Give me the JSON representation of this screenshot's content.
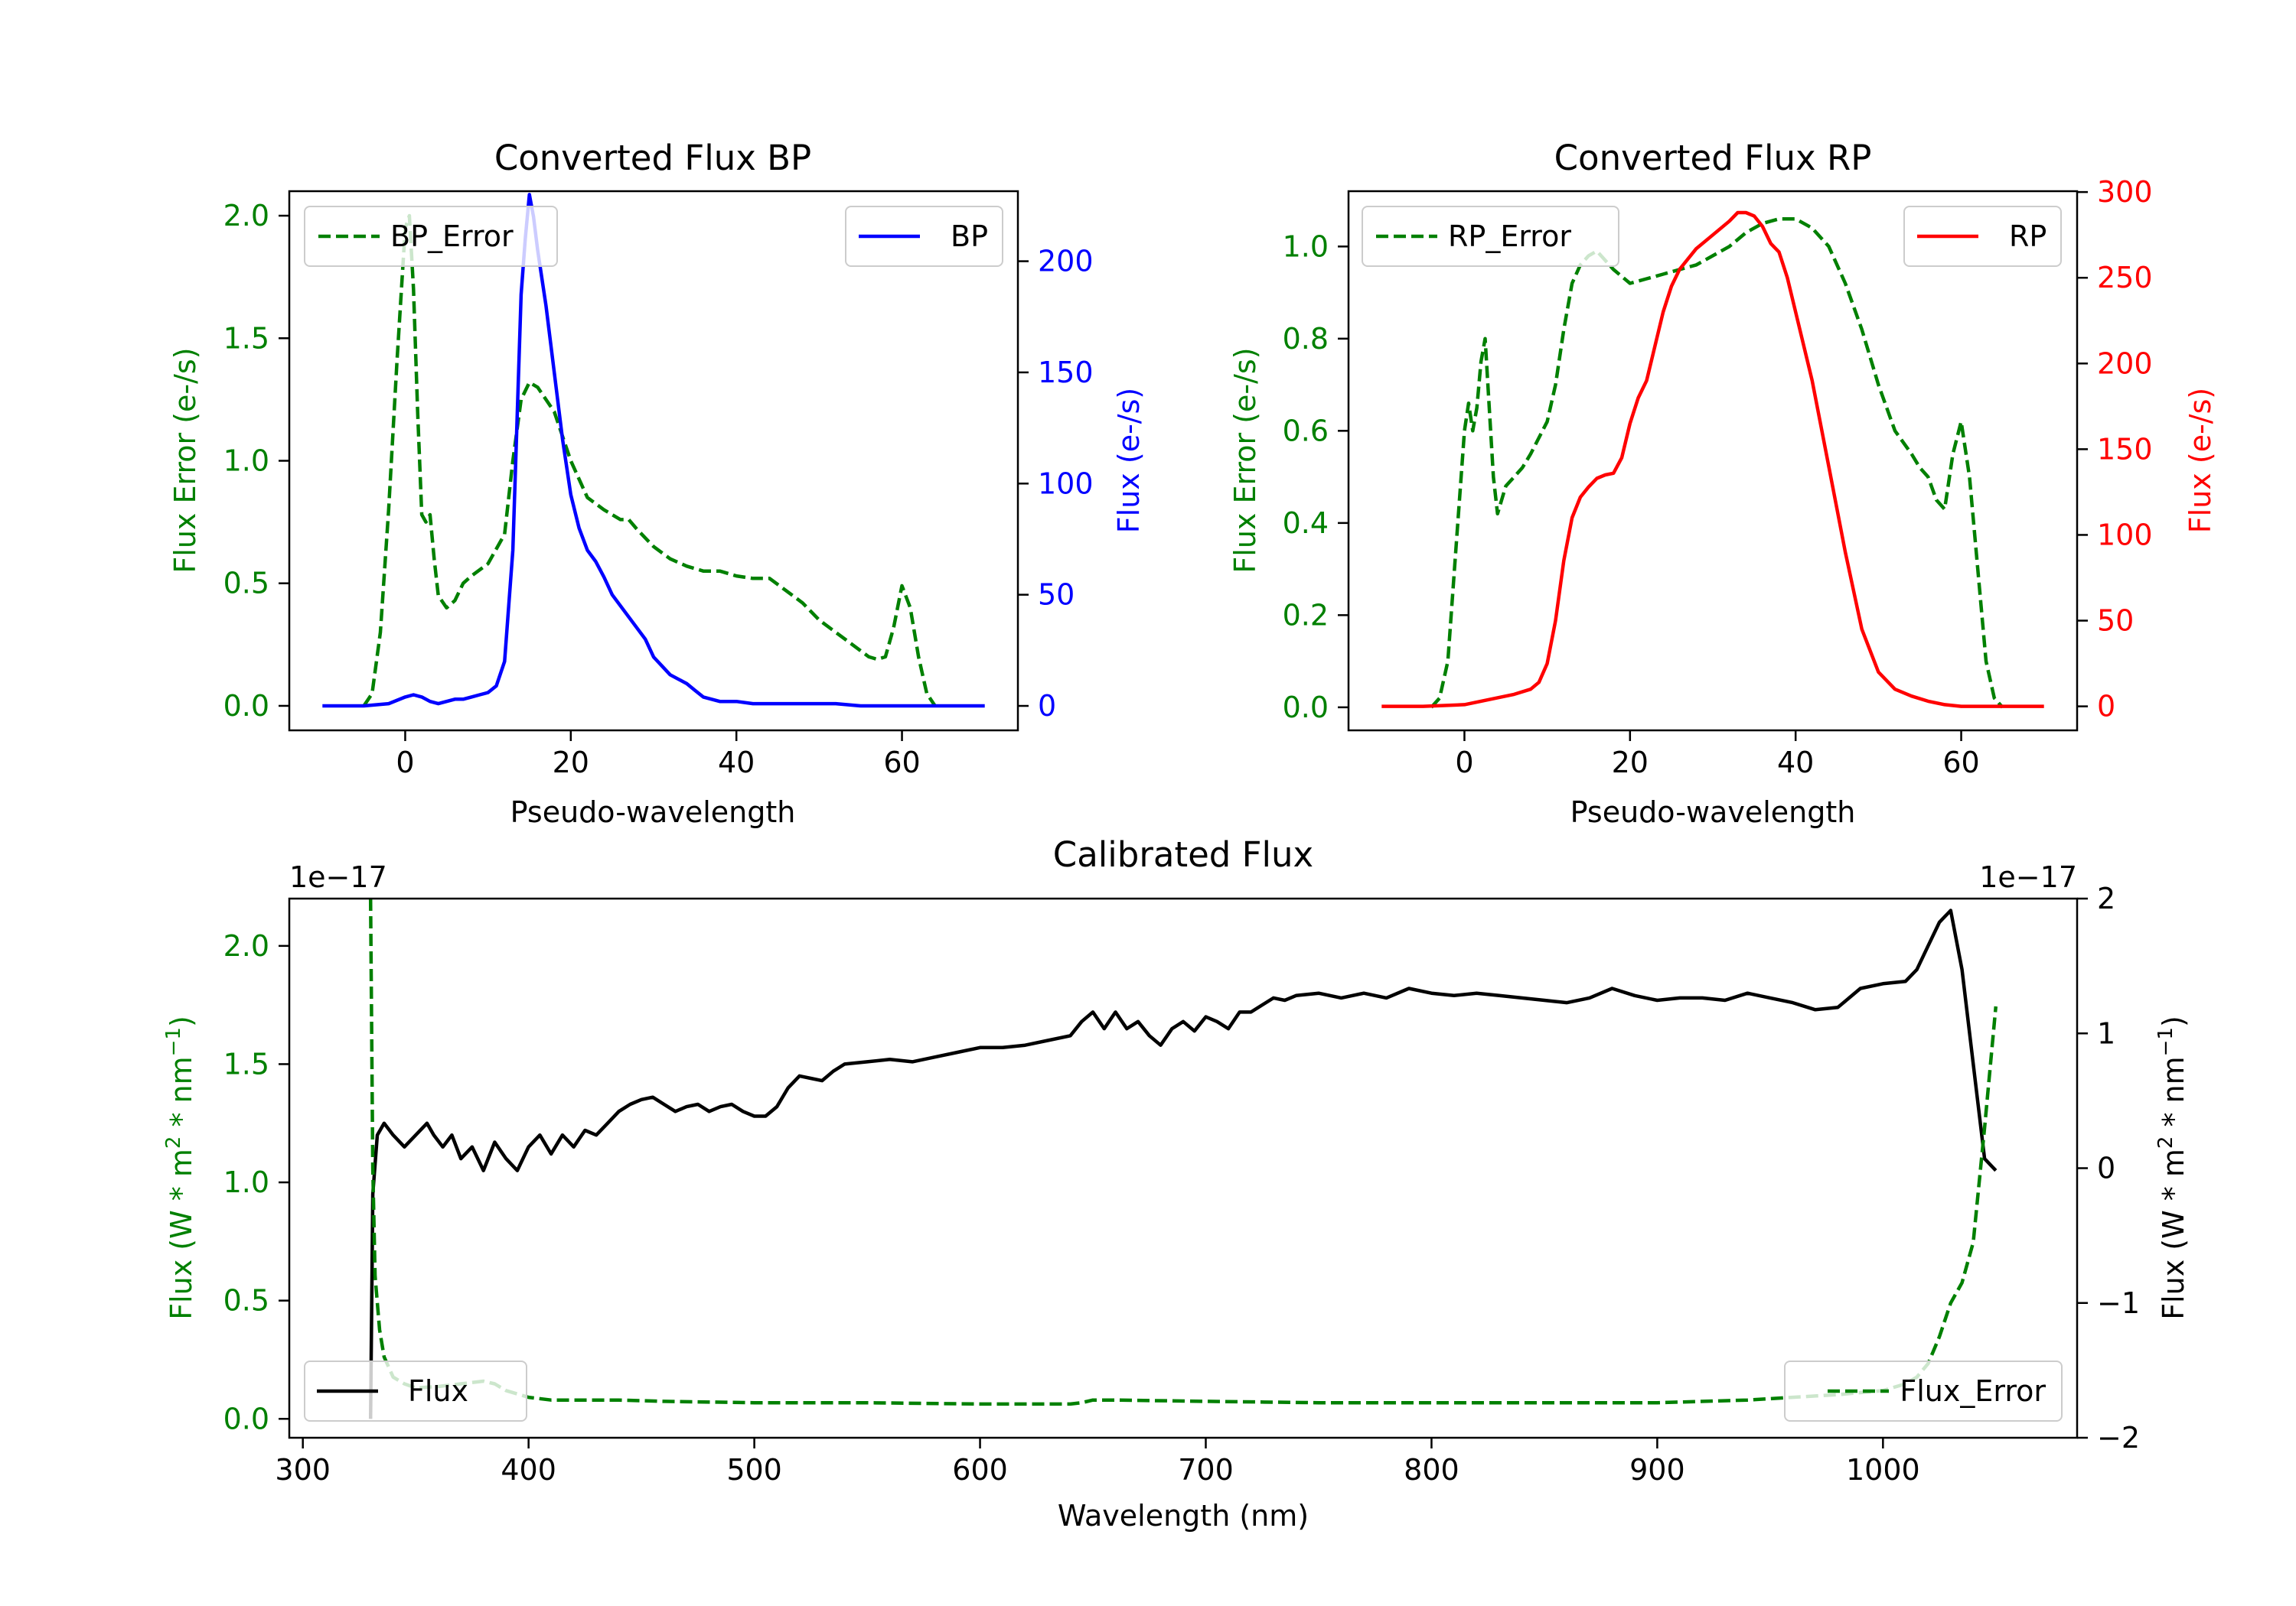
{
  "figure": {
    "colors": {
      "error": "#008000",
      "bp": "#0000ff",
      "rp": "#ff0000",
      "flux": "#000000",
      "axis": "#000000",
      "background": "#ffffff"
    }
  },
  "chart_data": [
    {
      "id": "bp",
      "type": "line",
      "title": "Converted Flux BP",
      "xlabel": "Pseudo-wavelength",
      "ylabel_left": "Flux Error (e-/s)",
      "ylabel_right": "Flux (e-/s)",
      "xlim": [
        -14,
        74
      ],
      "ylim_left": [
        -0.1,
        2.1
      ],
      "ylim_right": [
        -11.0,
        231.5
      ],
      "xticks": [
        0,
        20,
        40,
        60
      ],
      "yticks_left": [
        0.0,
        0.5,
        1.0,
        1.5,
        2.0
      ],
      "yticks_right": [
        0,
        50,
        100,
        150,
        200
      ],
      "xtick_labels": [
        "0",
        "20",
        "40",
        "60"
      ],
      "ytick_labels_left": [
        "0.0",
        "0.5",
        "1.0",
        "1.5",
        "2.0"
      ],
      "ytick_labels_right": [
        "0",
        "50",
        "100",
        "150",
        "200"
      ],
      "left_color": "#008000",
      "right_color": "#0000ff",
      "legend_left": "BP_Error",
      "legend_right": "BP",
      "series": [
        {
          "name": "BP_Error",
          "axis": "left",
          "style": "dashed",
          "color": "#008000",
          "x": [
            -5,
            -4,
            -3,
            -2,
            -1,
            0,
            0.5,
            1,
            1.5,
            2,
            2.5,
            3,
            3.5,
            4,
            5,
            6,
            7,
            8,
            10,
            12,
            13,
            14,
            15,
            16,
            18,
            20,
            22,
            24,
            26,
            27,
            28,
            30,
            32,
            34,
            36,
            38,
            40,
            42,
            44,
            46,
            48,
            50,
            52,
            54,
            56,
            57,
            58,
            59,
            60,
            61,
            62,
            63,
            64
          ],
          "values": [
            0.0,
            0.05,
            0.3,
            0.8,
            1.4,
            1.95,
            2.0,
            1.7,
            1.2,
            0.78,
            0.75,
            0.78,
            0.6,
            0.45,
            0.4,
            0.43,
            0.5,
            0.53,
            0.58,
            0.7,
            1.0,
            1.25,
            1.32,
            1.3,
            1.2,
            1.0,
            0.85,
            0.8,
            0.76,
            0.76,
            0.72,
            0.65,
            0.6,
            0.57,
            0.55,
            0.55,
            0.53,
            0.52,
            0.52,
            0.47,
            0.42,
            0.35,
            0.3,
            0.25,
            0.2,
            0.19,
            0.2,
            0.32,
            0.49,
            0.4,
            0.2,
            0.05,
            0.0
          ]
        },
        {
          "name": "BP",
          "axis": "right",
          "style": "solid",
          "color": "#0000ff",
          "x": [
            -10,
            -5,
            -2,
            0,
            1,
            2,
            3,
            4,
            5,
            6,
            7,
            8,
            9,
            10,
            11,
            12,
            13,
            14,
            14.5,
            15,
            15.5,
            16,
            17,
            18,
            19,
            20,
            21,
            22,
            23,
            24,
            25,
            26,
            27,
            28,
            29,
            30,
            31,
            32,
            34,
            35,
            36,
            38,
            40,
            42,
            45,
            48,
            50,
            52,
            55,
            60,
            65,
            70
          ],
          "values": [
            0,
            0,
            1,
            4,
            5,
            4,
            2,
            1,
            2,
            3,
            3,
            4,
            5,
            6,
            9,
            20,
            70,
            185,
            210,
            230,
            220,
            205,
            180,
            150,
            120,
            95,
            80,
            70,
            65,
            58,
            50,
            45,
            40,
            35,
            30,
            22,
            18,
            14,
            10,
            7,
            4,
            2,
            2,
            1,
            1,
            1,
            1,
            1,
            0,
            0,
            0,
            0
          ]
        }
      ]
    },
    {
      "id": "rp",
      "type": "line",
      "title": "Converted Flux RP",
      "xlabel": "Pseudo-wavelength",
      "ylabel_left": "Flux Error (e-/s)",
      "ylabel_right": "Flux (e-/s)",
      "xlim": [
        -14,
        74
      ],
      "ylim_left": [
        -0.05,
        1.12
      ],
      "ylim_right": [
        -14.0,
        300.5
      ],
      "xticks": [
        0,
        20,
        40,
        60
      ],
      "yticks_left": [
        0.0,
        0.2,
        0.4,
        0.6,
        0.8,
        1.0
      ],
      "yticks_right": [
        0,
        50,
        100,
        150,
        200,
        250,
        300
      ],
      "xtick_labels": [
        "0",
        "20",
        "40",
        "60"
      ],
      "ytick_labels_left": [
        "0.0",
        "0.2",
        "0.4",
        "0.6",
        "0.8",
        "1.0"
      ],
      "ytick_labels_right": [
        "0",
        "50",
        "100",
        "150",
        "200",
        "250",
        "300"
      ],
      "left_color": "#008000",
      "right_color": "#ff0000",
      "legend_left": "RP_Error",
      "legend_right": "RP",
      "series": [
        {
          "name": "RP_Error",
          "axis": "left",
          "style": "dashed",
          "color": "#008000",
          "x": [
            -4,
            -3,
            -2,
            -1,
            0,
            0.5,
            1,
            1.5,
            2,
            2.5,
            3,
            3.5,
            4,
            5,
            6,
            7,
            8,
            10,
            11,
            12,
            13,
            14,
            15,
            16,
            18,
            20,
            22,
            24,
            26,
            28,
            30,
            32,
            34,
            36,
            38,
            40,
            42,
            44,
            46,
            48,
            50,
            52,
            54,
            55,
            56,
            57,
            58,
            59,
            60,
            61,
            62,
            63,
            64,
            65
          ],
          "values": [
            0.0,
            0.02,
            0.1,
            0.35,
            0.6,
            0.66,
            0.6,
            0.65,
            0.75,
            0.8,
            0.65,
            0.5,
            0.42,
            0.48,
            0.5,
            0.52,
            0.55,
            0.62,
            0.7,
            0.82,
            0.92,
            0.96,
            0.98,
            0.99,
            0.95,
            0.92,
            0.93,
            0.94,
            0.95,
            0.96,
            0.98,
            1.0,
            1.03,
            1.05,
            1.06,
            1.06,
            1.04,
            1.0,
            0.92,
            0.82,
            0.7,
            0.6,
            0.55,
            0.52,
            0.5,
            0.45,
            0.43,
            0.55,
            0.62,
            0.5,
            0.3,
            0.1,
            0.02,
            0.0
          ]
        },
        {
          "name": "RP",
          "axis": "right",
          "style": "solid",
          "color": "#ff0000",
          "x": [
            -10,
            -5,
            0,
            2,
            4,
            6,
            8,
            9,
            10,
            11,
            12,
            13,
            14,
            15,
            16,
            17,
            18,
            19,
            20,
            21,
            22,
            23,
            24,
            25,
            26,
            28,
            30,
            32,
            33,
            34,
            35,
            36,
            37,
            38,
            39,
            40,
            42,
            44,
            46,
            48,
            50,
            52,
            54,
            56,
            58,
            60,
            62,
            65,
            70
          ],
          "values": [
            0,
            0,
            1,
            3,
            5,
            7,
            10,
            14,
            25,
            50,
            85,
            110,
            122,
            128,
            133,
            135,
            136,
            145,
            165,
            180,
            190,
            210,
            230,
            245,
            255,
            267,
            275,
            283,
            288,
            288,
            286,
            280,
            270,
            265,
            250,
            230,
            190,
            140,
            90,
            45,
            20,
            10,
            6,
            3,
            1,
            0,
            0,
            0,
            0
          ]
        }
      ]
    },
    {
      "id": "calibrated",
      "type": "line",
      "title": "Calibrated Flux",
      "xlabel": "Wavelength (nm)",
      "ylabel_left": "Flux (W * m$^2$ * nm$^{-1}$)",
      "ylabel_right": "Flux (W * m$^2$ * nm$^{-1}$)",
      "offset_left": "1e−17",
      "offset_right": "1e−17",
      "xlim": [
        294,
        1086
      ],
      "ylim_left": [
        -0.08,
        2.2
      ],
      "ylim_right": [
        -2.0,
        2.0
      ],
      "xticks": [
        300,
        400,
        500,
        600,
        700,
        800,
        900,
        1000
      ],
      "yticks_left": [
        0.0,
        0.5,
        1.0,
        1.5,
        2.0
      ],
      "yticks_right": [
        -2,
        -1,
        0,
        1,
        2
      ],
      "xtick_labels": [
        "300",
        "400",
        "500",
        "600",
        "700",
        "800",
        "900",
        "1000"
      ],
      "ytick_labels_left": [
        "0.0",
        "0.5",
        "1.0",
        "1.5",
        "2.0"
      ],
      "ytick_labels_right": [
        "−2",
        "−1",
        "0",
        "1",
        "2"
      ],
      "left_color": "#008000",
      "right_color": "#000000",
      "legend_left": "Flux",
      "legend_right": "Flux_Error",
      "series": [
        {
          "name": "Flux",
          "axis": "left",
          "style": "solid",
          "color": "#000000",
          "x": [
            330,
            331,
            333,
            336,
            340,
            345,
            350,
            355,
            358,
            362,
            366,
            370,
            375,
            380,
            385,
            390,
            395,
            400,
            405,
            410,
            415,
            420,
            425,
            430,
            435,
            440,
            445,
            450,
            455,
            460,
            465,
            470,
            475,
            480,
            485,
            490,
            495,
            500,
            505,
            510,
            515,
            520,
            525,
            530,
            535,
            540,
            550,
            560,
            570,
            580,
            590,
            600,
            610,
            620,
            630,
            640,
            645,
            650,
            655,
            660,
            665,
            670,
            675,
            680,
            685,
            690,
            695,
            700,
            705,
            710,
            715,
            720,
            725,
            730,
            735,
            740,
            750,
            760,
            770,
            780,
            790,
            800,
            810,
            820,
            830,
            840,
            850,
            860,
            870,
            880,
            890,
            900,
            910,
            920,
            930,
            940,
            950,
            960,
            970,
            980,
            985,
            990,
            1000,
            1010,
            1015,
            1020,
            1025,
            1030,
            1035,
            1040,
            1045,
            1050
          ],
          "values": [
            0.0,
            0.95,
            1.2,
            1.25,
            1.2,
            1.15,
            1.2,
            1.25,
            1.2,
            1.15,
            1.2,
            1.1,
            1.15,
            1.05,
            1.17,
            1.1,
            1.05,
            1.15,
            1.2,
            1.12,
            1.2,
            1.15,
            1.22,
            1.2,
            1.25,
            1.3,
            1.33,
            1.35,
            1.36,
            1.33,
            1.3,
            1.32,
            1.33,
            1.3,
            1.32,
            1.33,
            1.3,
            1.28,
            1.28,
            1.32,
            1.4,
            1.45,
            1.44,
            1.43,
            1.47,
            1.5,
            1.51,
            1.52,
            1.51,
            1.53,
            1.55,
            1.57,
            1.57,
            1.58,
            1.6,
            1.62,
            1.68,
            1.72,
            1.65,
            1.72,
            1.65,
            1.68,
            1.62,
            1.58,
            1.65,
            1.68,
            1.64,
            1.7,
            1.68,
            1.65,
            1.72,
            1.72,
            1.75,
            1.78,
            1.77,
            1.79,
            1.8,
            1.78,
            1.8,
            1.78,
            1.82,
            1.8,
            1.79,
            1.8,
            1.79,
            1.78,
            1.77,
            1.76,
            1.78,
            1.82,
            1.79,
            1.77,
            1.78,
            1.78,
            1.77,
            1.8,
            1.78,
            1.76,
            1.73,
            1.74,
            1.78,
            1.82,
            1.84,
            1.85,
            1.9,
            2.0,
            2.1,
            2.15,
            1.9,
            1.5,
            1.1,
            1.05
          ]
        },
        {
          "name": "Flux_Error",
          "axis": "right",
          "style": "dashed",
          "color": "#008000",
          "x": [
            330,
            331,
            332,
            334,
            336,
            340,
            345,
            350,
            360,
            370,
            380,
            385,
            390,
            400,
            410,
            420,
            440,
            460,
            500,
            550,
            600,
            630,
            640,
            645,
            650,
            660,
            700,
            750,
            800,
            850,
            900,
            940,
            960,
            980,
            1000,
            1010,
            1015,
            1020,
            1025,
            1030,
            1035,
            1040,
            1045,
            1050
          ],
          "values": [
            2.0,
            0.0,
            -0.8,
            -1.2,
            -1.4,
            -1.55,
            -1.6,
            -1.63,
            -1.62,
            -1.6,
            -1.58,
            -1.6,
            -1.65,
            -1.7,
            -1.72,
            -1.72,
            -1.72,
            -1.73,
            -1.74,
            -1.74,
            -1.75,
            -1.75,
            -1.75,
            -1.74,
            -1.72,
            -1.72,
            -1.73,
            -1.74,
            -1.74,
            -1.74,
            -1.74,
            -1.72,
            -1.7,
            -1.68,
            -1.65,
            -1.6,
            -1.55,
            -1.45,
            -1.25,
            -1.0,
            -0.85,
            -0.55,
            0.3,
            1.2
          ]
        }
      ]
    }
  ]
}
